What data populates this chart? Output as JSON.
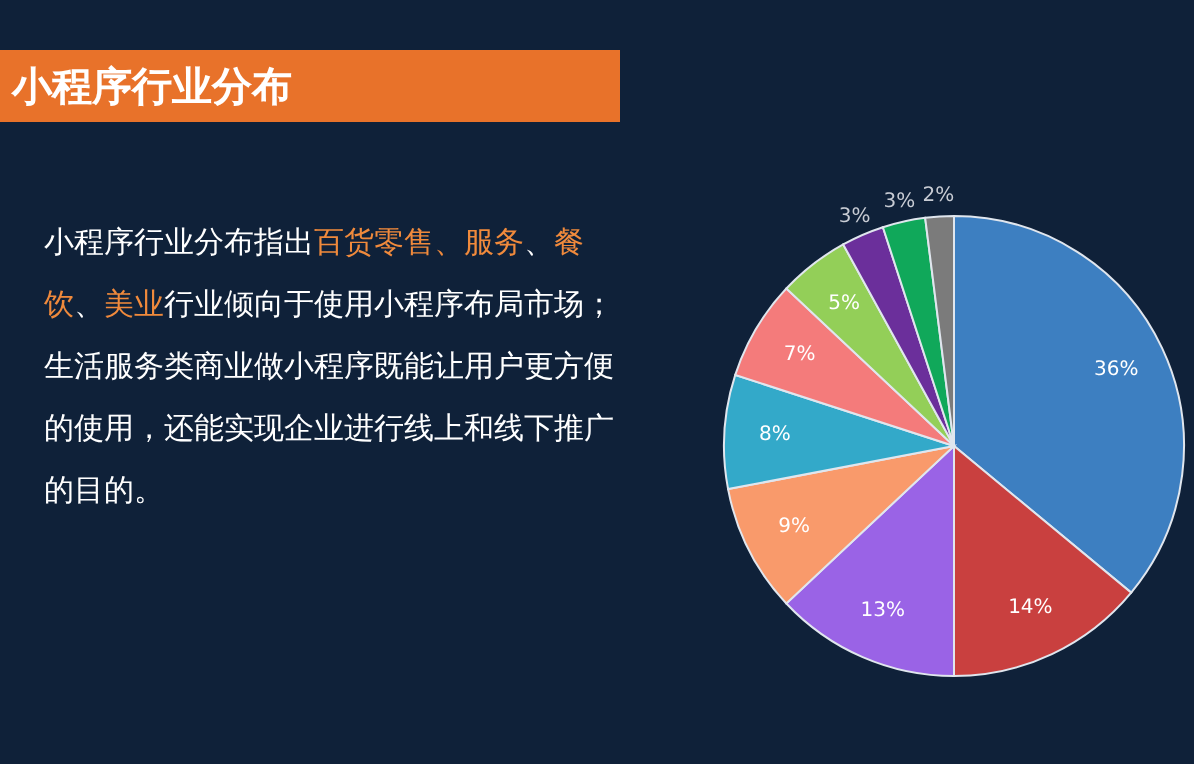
{
  "chart_data": {
    "type": "pie",
    "title": "小程序行业分布",
    "categories": [
      null,
      null,
      null,
      null,
      null,
      null,
      null,
      null,
      null,
      null
    ],
    "values": [
      36,
      14,
      13,
      9,
      8,
      7,
      5,
      3,
      3,
      2
    ],
    "value_labels": [
      "36%",
      "14%",
      "13%",
      "9%",
      "8%",
      "7%",
      "5%",
      "3%",
      "3%",
      "2%"
    ],
    "colors": [
      "#3d7fc1",
      "#c9403f",
      "#9a63e6",
      "#f99a6b",
      "#33a9c9",
      "#f47b7b",
      "#93cf58",
      "#6b2f9b",
      "#10a85a",
      "#7b7b7b"
    ],
    "annotations": [
      "小程序行业分布指出",
      "百货零售、服务",
      "、",
      "餐饮",
      "、",
      "美业",
      "行业倾向于使用小程序布局市场；",
      "生活服务类商业做小程序既能让用户更方便的使用，还能实现企业进行线上和线下推广的目的。"
    ],
    "legend": false
  }
}
